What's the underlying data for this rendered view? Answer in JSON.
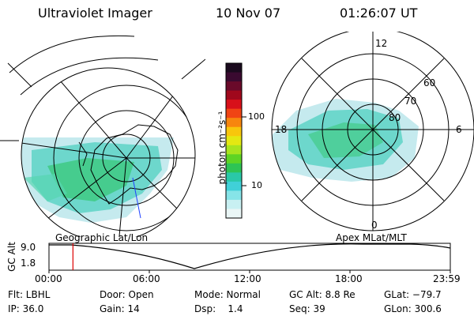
{
  "header": {
    "instrument": "Ultraviolet Imager",
    "date": "10 Nov 07",
    "time": "01:26:07 UT"
  },
  "left_panel": {
    "caption": "Geographic Lat/Lon"
  },
  "right_panel": {
    "caption": "Apex MLat/MLT",
    "lat_labels": [
      "60",
      "70",
      "80"
    ],
    "mlt_labels": [
      "12",
      "18",
      "6",
      "0"
    ]
  },
  "colorbar": {
    "unit_label": "photon cm⁻²s⁻¹",
    "tick_labels": [
      "100",
      "10"
    ],
    "colors": [
      "#1a0a1e",
      "#3a0a30",
      "#6a0a2a",
      "#a0081c",
      "#d8101a",
      "#f04414",
      "#f7860e",
      "#f8c60c",
      "#e4e812",
      "#a8e41e",
      "#5ed424",
      "#2ec454",
      "#2ac8a8",
      "#40d0d8",
      "#86e4e8",
      "#c8f0f2",
      "#eaf6f6"
    ]
  },
  "altitude_strip": {
    "y_axis_label": "GC Alt",
    "y_ticks": [
      "9.0",
      "1.8"
    ],
    "x_ticks": [
      "00:00",
      "06:00",
      "12:00",
      "18:00",
      "23:59"
    ],
    "marker_time": "01:26",
    "marker_color": "#dd0000"
  },
  "footer": {
    "row1": [
      {
        "key": "flt",
        "text": "Flt: LBHL"
      },
      {
        "key": "door",
        "text": "Door: Open"
      },
      {
        "key": "mode",
        "text": "Mode: Normal"
      },
      {
        "key": "gcalt",
        "text": "GC Alt: 8.8 Re"
      },
      {
        "key": "glat",
        "text": "GLat: −79.7"
      }
    ],
    "row2": [
      {
        "key": "ip",
        "text": "IP: 36.0"
      },
      {
        "key": "gain",
        "text": "Gain: 14"
      },
      {
        "key": "dsp",
        "text": "Dsp:    1.4"
      },
      {
        "key": "seq",
        "text": "Seq: 39"
      },
      {
        "key": "glon",
        "text": "GLon: 300.6"
      }
    ]
  }
}
